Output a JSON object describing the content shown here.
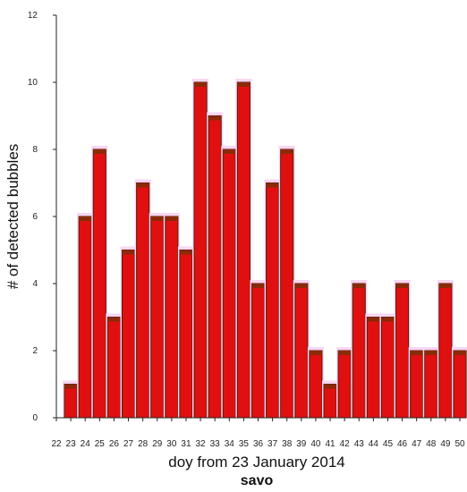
{
  "chart_data": {
    "type": "bar",
    "title": "savo",
    "xlabel": "doy from 23 January 2014",
    "ylabel": "# of detected bubbles",
    "ylim": [
      0,
      12
    ],
    "yticks": [
      "0",
      "2",
      "4",
      "6",
      "8",
      "10",
      "12"
    ],
    "xlim": [
      22,
      50
    ],
    "xticks": [
      "22",
      "23",
      "24",
      "25",
      "26",
      "27",
      "28",
      "29",
      "30",
      "31",
      "32",
      "33",
      "34",
      "35",
      "36",
      "37",
      "38",
      "39",
      "40",
      "41",
      "42",
      "43",
      "44",
      "45",
      "46",
      "47",
      "48",
      "49",
      "50"
    ],
    "categories": [
      "23",
      "24",
      "25",
      "26",
      "27",
      "28",
      "29",
      "30",
      "31",
      "32",
      "33",
      "34",
      "35",
      "36",
      "37",
      "38",
      "39",
      "40",
      "41",
      "42",
      "43",
      "44",
      "45",
      "46",
      "47",
      "48",
      "49",
      "50"
    ],
    "values": [
      1,
      6,
      8,
      3,
      5,
      7,
      6,
      6,
      5,
      10,
      9,
      8,
      10,
      4,
      7,
      8,
      4,
      2,
      1,
      2,
      4,
      3,
      3,
      4,
      2,
      2,
      4,
      2
    ],
    "grid": false,
    "colors": {
      "bar_fill": "#e01010",
      "bar_edge": "#5a1a0a",
      "bar_cap": "#8b2a08",
      "axis": "#222222"
    }
  }
}
